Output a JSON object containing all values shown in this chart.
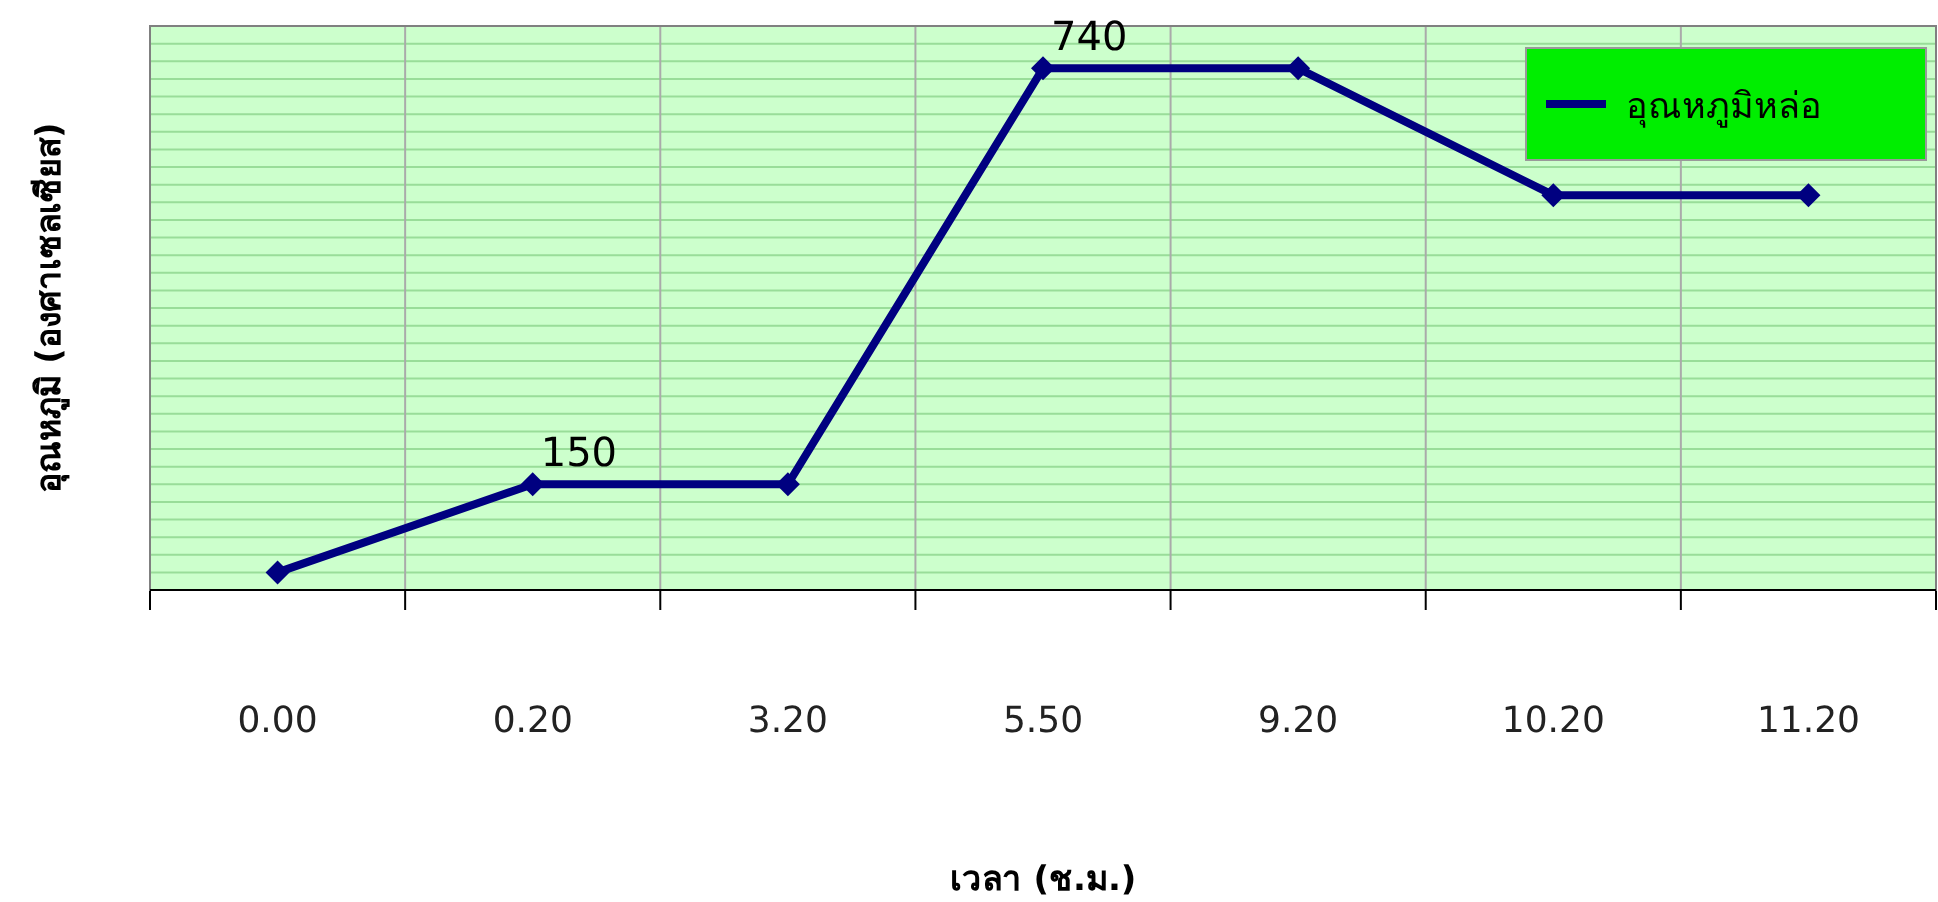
{
  "chart_data": {
    "type": "line",
    "xlabel": "เวลา (ช.ม.)",
    "ylabel": "อุณหภูมิ (องศาเซลเซียส)",
    "categories": [
      "0.00",
      "0.20",
      "3.20",
      "5.50",
      "9.20",
      "10.20",
      "11.20"
    ],
    "series": [
      {
        "name": "อุณหภูมิหล่อ",
        "color": "#000080",
        "values": [
          25,
          150,
          150,
          740,
          740,
          560,
          560
        ],
        "value_labels": [
          null,
          "150",
          null,
          "740",
          null,
          null,
          null
        ]
      }
    ],
    "ylim": [
      0,
      800
    ],
    "yticks": [
      {
        "value": 0,
        "label": null
      },
      {
        "value": 25,
        "label": null
      },
      {
        "value": 50,
        "label": null
      },
      {
        "value": 75,
        "label": null
      },
      {
        "value": 100,
        "label": null
      },
      {
        "value": 125,
        "label": null
      },
      {
        "value": 150,
        "label": null
      },
      {
        "value": 175,
        "label": null
      },
      {
        "value": 200,
        "label": null
      },
      {
        "value": 225,
        "label": null
      },
      {
        "value": 250,
        "label": null
      },
      {
        "value": 275,
        "label": null
      },
      {
        "value": 300,
        "label": null
      },
      {
        "value": 325,
        "label": null
      },
      {
        "value": 350,
        "label": null
      },
      {
        "value": 375,
        "label": null
      },
      {
        "value": 400,
        "label": null
      },
      {
        "value": 425,
        "label": null
      },
      {
        "value": 450,
        "label": null
      },
      {
        "value": 475,
        "label": null
      },
      {
        "value": 500,
        "label": null
      },
      {
        "value": 525,
        "label": null
      },
      {
        "value": 550,
        "label": null
      },
      {
        "value": 575,
        "label": null
      },
      {
        "value": 600,
        "label": null
      },
      {
        "value": 625,
        "label": null
      },
      {
        "value": 650,
        "label": null
      },
      {
        "value": 675,
        "label": null
      },
      {
        "value": 700,
        "label": null
      },
      {
        "value": 725,
        "label": null
      },
      {
        "value": 750,
        "label": null
      },
      {
        "value": 775,
        "label": null
      },
      {
        "value": 800,
        "label": null
      }
    ],
    "grid": true,
    "legend": "top right",
    "marker": "diamond",
    "line_style": "solid"
  }
}
